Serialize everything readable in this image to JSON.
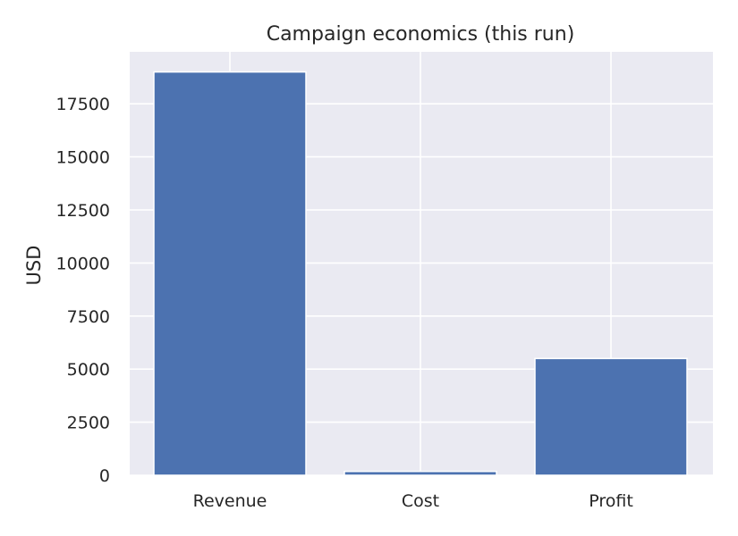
{
  "chart_data": {
    "type": "bar",
    "title": "Campaign economics (this run)",
    "xlabel": "",
    "ylabel": "USD",
    "categories": [
      "Revenue",
      "Cost",
      "Profit"
    ],
    "values": [
      19000,
      180,
      5500
    ],
    "ylim": [
      0,
      19950
    ],
    "yticks": [
      0,
      2500,
      5000,
      7500,
      10000,
      12500,
      15000,
      17500
    ],
    "grid": true,
    "colors": {
      "bar": "#4c72b0",
      "background": "#eaeaf2",
      "grid": "#ffffff"
    }
  }
}
